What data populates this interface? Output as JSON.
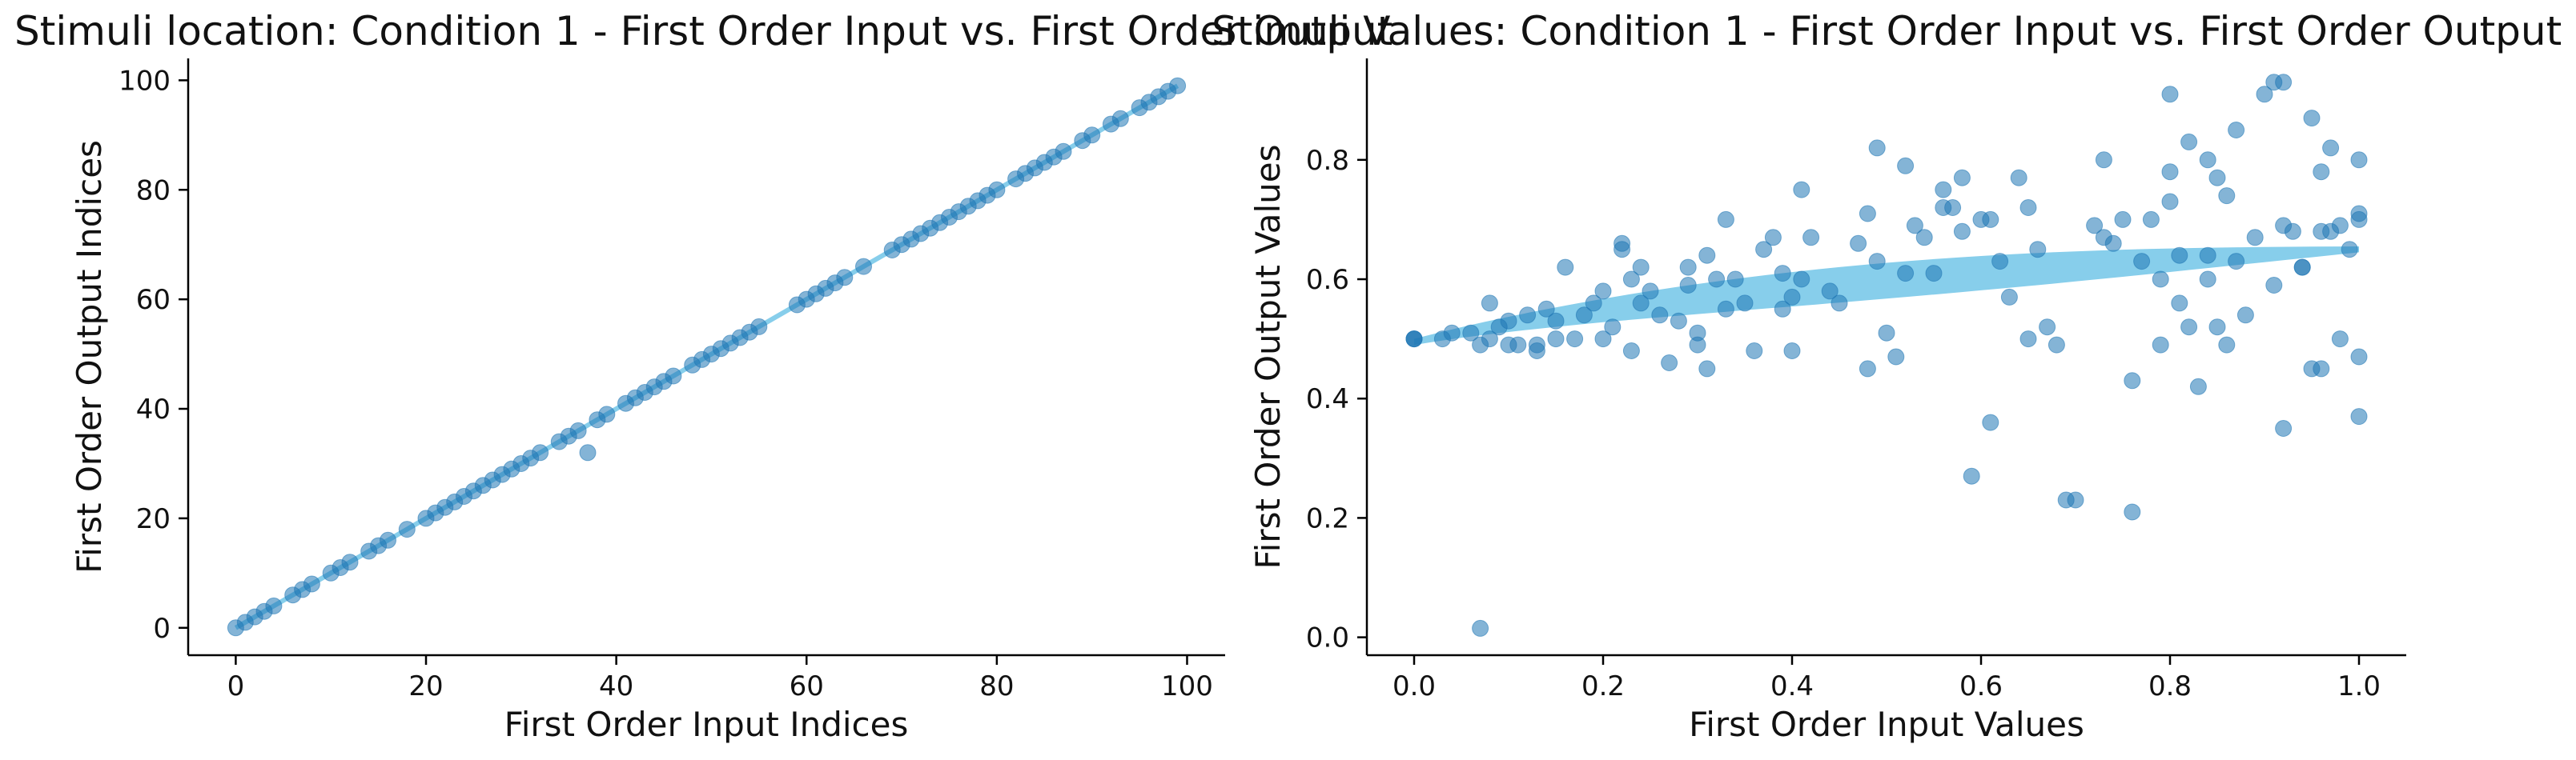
{
  "chart_data": [
    {
      "type": "scatter",
      "title": "Stimuli location: Condition 1 - First Order Input vs. First Order Output",
      "xlabel": "First Order Input Indices",
      "ylabel": "First Order Output Indices",
      "xlim": [
        -5,
        104
      ],
      "ylim": [
        -5,
        104
      ],
      "xticks": [
        "0",
        "20",
        "40",
        "60",
        "80",
        "100"
      ],
      "yticks": [
        "0",
        "20",
        "40",
        "60",
        "80",
        "100"
      ],
      "grid": false,
      "colors": {
        "points": "#1f77b4",
        "fit": "#87ceeb"
      },
      "fit_line": {
        "x": [
          0,
          99
        ],
        "y": [
          0,
          99
        ]
      },
      "points": [
        [
          0,
          0
        ],
        [
          1,
          1
        ],
        [
          2,
          2
        ],
        [
          3,
          3
        ],
        [
          4,
          4
        ],
        [
          6,
          6
        ],
        [
          7,
          7
        ],
        [
          8,
          8
        ],
        [
          10,
          10
        ],
        [
          11,
          11
        ],
        [
          12,
          12
        ],
        [
          14,
          14
        ],
        [
          15,
          15
        ],
        [
          16,
          16
        ],
        [
          18,
          18
        ],
        [
          20,
          20
        ],
        [
          21,
          21
        ],
        [
          22,
          22
        ],
        [
          23,
          23
        ],
        [
          24,
          24
        ],
        [
          25,
          25
        ],
        [
          26,
          26
        ],
        [
          27,
          27
        ],
        [
          28,
          28
        ],
        [
          29,
          29
        ],
        [
          30,
          30
        ],
        [
          31,
          31
        ],
        [
          32,
          32
        ],
        [
          34,
          34
        ],
        [
          35,
          35
        ],
        [
          36,
          36
        ],
        [
          37,
          32
        ],
        [
          38,
          38
        ],
        [
          39,
          39
        ],
        [
          41,
          41
        ],
        [
          42,
          42
        ],
        [
          43,
          43
        ],
        [
          44,
          44
        ],
        [
          45,
          45
        ],
        [
          46,
          46
        ],
        [
          48,
          48
        ],
        [
          49,
          49
        ],
        [
          50,
          50
        ],
        [
          51,
          51
        ],
        [
          52,
          52
        ],
        [
          53,
          53
        ],
        [
          54,
          54
        ],
        [
          55,
          55
        ],
        [
          59,
          59
        ],
        [
          60,
          60
        ],
        [
          61,
          61
        ],
        [
          62,
          62
        ],
        [
          63,
          63
        ],
        [
          64,
          64
        ],
        [
          66,
          66
        ],
        [
          69,
          69
        ],
        [
          70,
          70
        ],
        [
          71,
          71
        ],
        [
          72,
          72
        ],
        [
          73,
          73
        ],
        [
          74,
          74
        ],
        [
          75,
          75
        ],
        [
          76,
          76
        ],
        [
          77,
          77
        ],
        [
          78,
          78
        ],
        [
          79,
          79
        ],
        [
          80,
          80
        ],
        [
          82,
          82
        ],
        [
          83,
          83
        ],
        [
          84,
          84
        ],
        [
          85,
          85
        ],
        [
          86,
          86
        ],
        [
          87,
          87
        ],
        [
          89,
          89
        ],
        [
          90,
          90
        ],
        [
          92,
          92
        ],
        [
          93,
          93
        ],
        [
          95,
          95
        ],
        [
          96,
          96
        ],
        [
          97,
          97
        ],
        [
          98,
          98
        ],
        [
          99,
          99
        ]
      ]
    },
    {
      "type": "scatter",
      "title": "Stimuli Values: Condition 1 - First Order Input vs. First Order Output",
      "xlabel": "First Order Input Values",
      "ylabel": "First Order Output Values",
      "xlim": [
        -0.05,
        1.05
      ],
      "ylim": [
        -0.03,
        0.97
      ],
      "xticks": [
        "0.0",
        "0.2",
        "0.4",
        "0.6",
        "0.8",
        "1.0"
      ],
      "yticks": [
        "0.0",
        "0.2",
        "0.4",
        "0.6",
        "0.8"
      ],
      "grid": false,
      "colors": {
        "points": "#1f77b4",
        "fit": "#87ceeb"
      },
      "fit_band": {
        "x0": 0.0,
        "x1": 1.0,
        "y0": 0.495,
        "y1": 0.65,
        "halfwidth0": 0.005,
        "halfwidthmid": 0.03,
        "halfwidth1": 0.005
      },
      "points": [
        [
          0.0,
          0.5
        ],
        [
          0.0,
          0.5
        ],
        [
          0.0,
          0.5
        ],
        [
          0.03,
          0.5
        ],
        [
          0.04,
          0.51
        ],
        [
          0.06,
          0.51
        ],
        [
          0.07,
          0.49
        ],
        [
          0.07,
          0.015
        ],
        [
          0.08,
          0.56
        ],
        [
          0.08,
          0.5
        ],
        [
          0.09,
          0.52
        ],
        [
          0.1,
          0.53
        ],
        [
          0.1,
          0.49
        ],
        [
          0.11,
          0.49
        ],
        [
          0.12,
          0.54
        ],
        [
          0.13,
          0.49
        ],
        [
          0.13,
          0.48
        ],
        [
          0.14,
          0.55
        ],
        [
          0.15,
          0.5
        ],
        [
          0.15,
          0.53
        ],
        [
          0.16,
          0.62
        ],
        [
          0.17,
          0.5
        ],
        [
          0.18,
          0.54
        ],
        [
          0.19,
          0.56
        ],
        [
          0.2,
          0.58
        ],
        [
          0.2,
          0.5
        ],
        [
          0.21,
          0.52
        ],
        [
          0.22,
          0.66
        ],
        [
          0.22,
          0.65
        ],
        [
          0.23,
          0.6
        ],
        [
          0.23,
          0.48
        ],
        [
          0.24,
          0.62
        ],
        [
          0.24,
          0.56
        ],
        [
          0.25,
          0.58
        ],
        [
          0.26,
          0.54
        ],
        [
          0.27,
          0.46
        ],
        [
          0.28,
          0.53
        ],
        [
          0.29,
          0.62
        ],
        [
          0.29,
          0.59
        ],
        [
          0.3,
          0.51
        ],
        [
          0.3,
          0.49
        ],
        [
          0.31,
          0.64
        ],
        [
          0.31,
          0.45
        ],
        [
          0.32,
          0.6
        ],
        [
          0.33,
          0.7
        ],
        [
          0.33,
          0.55
        ],
        [
          0.34,
          0.6
        ],
        [
          0.35,
          0.56
        ],
        [
          0.36,
          0.48
        ],
        [
          0.37,
          0.65
        ],
        [
          0.38,
          0.67
        ],
        [
          0.39,
          0.61
        ],
        [
          0.39,
          0.55
        ],
        [
          0.4,
          0.48
        ],
        [
          0.4,
          0.57
        ],
        [
          0.41,
          0.6
        ],
        [
          0.41,
          0.75
        ],
        [
          0.42,
          0.67
        ],
        [
          0.44,
          0.58
        ],
        [
          0.45,
          0.56
        ],
        [
          0.47,
          0.66
        ],
        [
          0.48,
          0.71
        ],
        [
          0.48,
          0.45
        ],
        [
          0.49,
          0.63
        ],
        [
          0.49,
          0.82
        ],
        [
          0.5,
          0.51
        ],
        [
          0.51,
          0.47
        ],
        [
          0.52,
          0.79
        ],
        [
          0.52,
          0.61
        ],
        [
          0.53,
          0.69
        ],
        [
          0.54,
          0.67
        ],
        [
          0.55,
          0.61
        ],
        [
          0.56,
          0.75
        ],
        [
          0.56,
          0.72
        ],
        [
          0.57,
          0.72
        ],
        [
          0.58,
          0.77
        ],
        [
          0.58,
          0.68
        ],
        [
          0.59,
          0.27
        ],
        [
          0.6,
          0.7
        ],
        [
          0.61,
          0.7
        ],
        [
          0.61,
          0.36
        ],
        [
          0.62,
          0.63
        ],
        [
          0.63,
          0.57
        ],
        [
          0.64,
          0.77
        ],
        [
          0.65,
          0.5
        ],
        [
          0.65,
          0.72
        ],
        [
          0.66,
          0.65
        ],
        [
          0.67,
          0.52
        ],
        [
          0.68,
          0.49
        ],
        [
          0.69,
          0.23
        ],
        [
          0.7,
          0.23
        ],
        [
          0.72,
          0.69
        ],
        [
          0.73,
          0.8
        ],
        [
          0.73,
          0.67
        ],
        [
          0.74,
          0.66
        ],
        [
          0.75,
          0.7
        ],
        [
          0.76,
          0.43
        ],
        [
          0.76,
          0.21
        ],
        [
          0.77,
          0.63
        ],
        [
          0.78,
          0.7
        ],
        [
          0.79,
          0.6
        ],
        [
          0.79,
          0.49
        ],
        [
          0.8,
          0.91
        ],
        [
          0.8,
          0.78
        ],
        [
          0.8,
          0.73
        ],
        [
          0.81,
          0.64
        ],
        [
          0.81,
          0.56
        ],
        [
          0.82,
          0.83
        ],
        [
          0.82,
          0.52
        ],
        [
          0.83,
          0.42
        ],
        [
          0.84,
          0.64
        ],
        [
          0.84,
          0.8
        ],
        [
          0.84,
          0.6
        ],
        [
          0.85,
          0.77
        ],
        [
          0.85,
          0.52
        ],
        [
          0.86,
          0.49
        ],
        [
          0.86,
          0.74
        ],
        [
          0.87,
          0.85
        ],
        [
          0.87,
          0.63
        ],
        [
          0.88,
          0.54
        ],
        [
          0.89,
          0.67
        ],
        [
          0.9,
          0.91
        ],
        [
          0.91,
          0.93
        ],
        [
          0.91,
          0.59
        ],
        [
          0.92,
          0.93
        ],
        [
          0.92,
          0.69
        ],
        [
          0.92,
          0.35
        ],
        [
          0.93,
          0.68
        ],
        [
          0.94,
          0.62
        ],
        [
          0.94,
          0.62
        ],
        [
          0.95,
          0.87
        ],
        [
          0.95,
          0.45
        ],
        [
          0.96,
          0.45
        ],
        [
          0.96,
          0.78
        ],
        [
          0.97,
          0.68
        ],
        [
          0.97,
          0.82
        ],
        [
          0.98,
          0.5
        ],
        [
          0.98,
          0.69
        ],
        [
          0.99,
          0.65
        ],
        [
          1.0,
          0.8
        ],
        [
          1.0,
          0.71
        ],
        [
          1.0,
          0.7
        ],
        [
          1.0,
          0.37
        ],
        [
          1.0,
          0.47
        ],
        [
          0.96,
          0.68
        ]
      ]
    }
  ]
}
